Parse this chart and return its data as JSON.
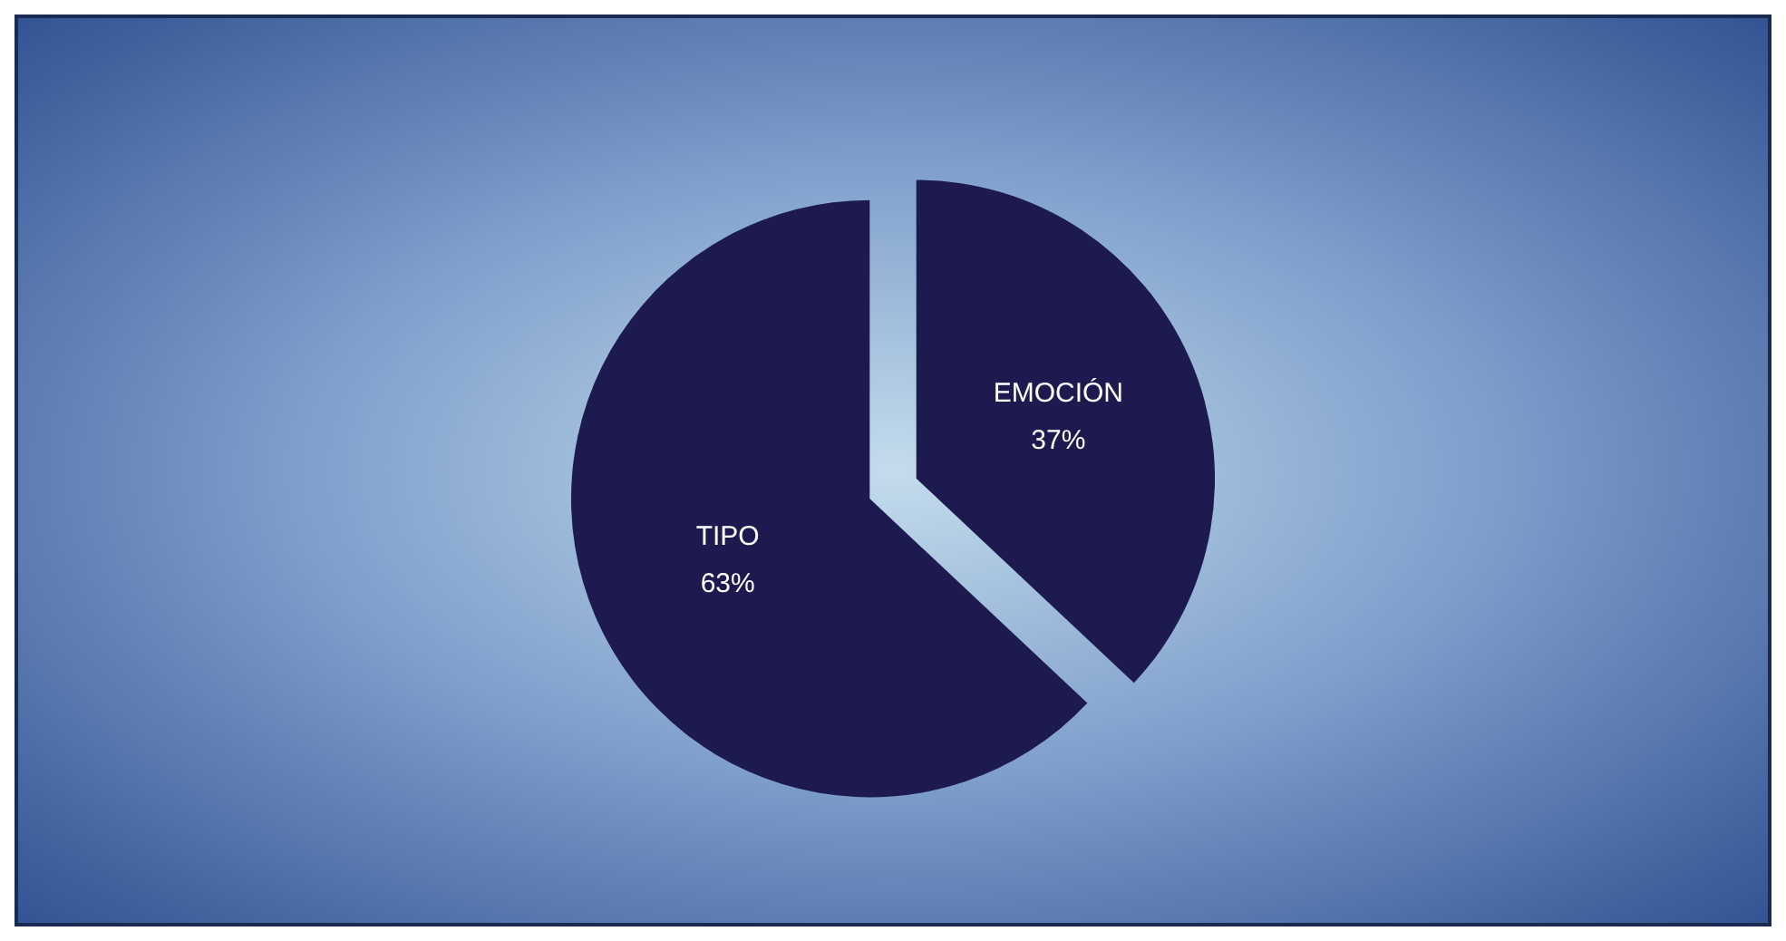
{
  "chart_data": {
    "type": "pie",
    "categories": [
      "EMOCIÓN",
      "TIPO"
    ],
    "values": [
      37,
      63
    ],
    "value_labels": [
      "37%",
      "63%"
    ],
    "colors": [
      "#1c1a4f",
      "#1c1a4f"
    ],
    "legend": false
  }
}
